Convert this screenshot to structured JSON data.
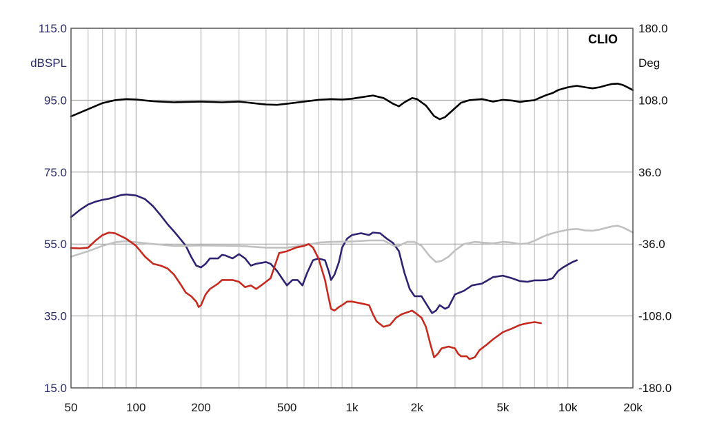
{
  "chart_data": {
    "type": "line",
    "brand": "CLIO",
    "ylabel_left": "dBSPL",
    "ylabel_right": "Deg",
    "xscale": "log",
    "xlim": [
      50,
      20000
    ],
    "ylim_left": [
      15,
      115
    ],
    "ylim_right": [
      -180,
      180
    ],
    "grid": true,
    "y_ticks_left": [
      "115.0",
      "95.0",
      "75.0",
      "55.0",
      "35.0",
      "15.0"
    ],
    "y_ticks_right": [
      "180.0",
      "108.0",
      "36.0",
      "-36.0",
      "-108.0",
      "-180.0"
    ],
    "x_ticks": [
      {
        "value": 50,
        "label": "50"
      },
      {
        "value": 100,
        "label": "100"
      },
      {
        "value": 200,
        "label": "200"
      },
      {
        "value": 500,
        "label": "500"
      },
      {
        "value": 1000,
        "label": "1k"
      },
      {
        "value": 2000,
        "label": "2k"
      },
      {
        "value": 5000,
        "label": "5k"
      },
      {
        "value": 10000,
        "label": "10k"
      },
      {
        "value": 20000,
        "label": "20k"
      }
    ],
    "series": [
      {
        "color": "#000000",
        "points": [
          [
            50,
            90.5
          ],
          [
            60,
            92.5
          ],
          [
            70,
            94.2
          ],
          [
            80,
            95.0
          ],
          [
            90,
            95.3
          ],
          [
            100,
            95.2
          ],
          [
            120,
            94.7
          ],
          [
            150,
            94.4
          ],
          [
            200,
            94.6
          ],
          [
            250,
            94.4
          ],
          [
            300,
            94.6
          ],
          [
            400,
            93.8
          ],
          [
            450,
            93.7
          ],
          [
            500,
            94.0
          ],
          [
            600,
            94.6
          ],
          [
            700,
            95.1
          ],
          [
            800,
            95.3
          ],
          [
            900,
            95.2
          ],
          [
            1000,
            95.4
          ],
          [
            1100,
            95.8
          ],
          [
            1250,
            96.3
          ],
          [
            1400,
            95.6
          ],
          [
            1550,
            94.0
          ],
          [
            1650,
            93.3
          ],
          [
            1750,
            94.4
          ],
          [
            1900,
            95.6
          ],
          [
            2000,
            95.3
          ],
          [
            2200,
            93.5
          ],
          [
            2400,
            90.6
          ],
          [
            2550,
            89.7
          ],
          [
            2700,
            90.3
          ],
          [
            2900,
            92.0
          ],
          [
            3200,
            94.3
          ],
          [
            3500,
            95.0
          ],
          [
            4000,
            95.3
          ],
          [
            4500,
            94.6
          ],
          [
            5000,
            95.1
          ],
          [
            5500,
            94.9
          ],
          [
            6000,
            94.5
          ],
          [
            6500,
            94.8
          ],
          [
            7000,
            95.0
          ],
          [
            7500,
            95.8
          ],
          [
            8000,
            96.5
          ],
          [
            8500,
            97.0
          ],
          [
            9000,
            97.8
          ],
          [
            10000,
            98.6
          ],
          [
            11000,
            99.0
          ],
          [
            12000,
            98.6
          ],
          [
            13000,
            98.3
          ],
          [
            14000,
            98.6
          ],
          [
            15000,
            99.1
          ],
          [
            16000,
            99.5
          ],
          [
            17000,
            99.6
          ],
          [
            18000,
            99.2
          ],
          [
            19000,
            98.5
          ],
          [
            20000,
            97.8
          ]
        ]
      },
      {
        "color": "#2e2272",
        "points": [
          [
            50,
            62.5
          ],
          [
            55,
            64.5
          ],
          [
            60,
            66.0
          ],
          [
            65,
            66.8
          ],
          [
            70,
            67.3
          ],
          [
            75,
            67.6
          ],
          [
            80,
            68.1
          ],
          [
            85,
            68.6
          ],
          [
            90,
            68.8
          ],
          [
            100,
            68.5
          ],
          [
            110,
            67.5
          ],
          [
            120,
            65.5
          ],
          [
            130,
            63.0
          ],
          [
            140,
            60.5
          ],
          [
            150,
            58.5
          ],
          [
            160,
            56.5
          ],
          [
            170,
            54.5
          ],
          [
            180,
            51.5
          ],
          [
            190,
            49.0
          ],
          [
            200,
            48.5
          ],
          [
            210,
            49.5
          ],
          [
            220,
            51.0
          ],
          [
            240,
            51.0
          ],
          [
            250,
            52.0
          ],
          [
            260,
            51.8
          ],
          [
            280,
            51.0
          ],
          [
            300,
            52.2
          ],
          [
            320,
            51.0
          ],
          [
            340,
            49.0
          ],
          [
            360,
            49.5
          ],
          [
            400,
            50.0
          ],
          [
            420,
            49.5
          ],
          [
            450,
            47.5
          ],
          [
            480,
            45.0
          ],
          [
            500,
            43.5
          ],
          [
            530,
            45.0
          ],
          [
            560,
            45.0
          ],
          [
            590,
            43.5
          ],
          [
            620,
            47.0
          ],
          [
            660,
            50.5
          ],
          [
            700,
            51.0
          ],
          [
            750,
            50.5
          ],
          [
            780,
            47.5
          ],
          [
            800,
            45.0
          ],
          [
            830,
            46.5
          ],
          [
            870,
            50.0
          ],
          [
            900,
            54.0
          ],
          [
            950,
            56.5
          ],
          [
            1000,
            57.5
          ],
          [
            1100,
            58.0
          ],
          [
            1200,
            57.5
          ],
          [
            1250,
            58.2
          ],
          [
            1350,
            58.0
          ],
          [
            1450,
            56.5
          ],
          [
            1550,
            55.3
          ],
          [
            1650,
            53.0
          ],
          [
            1750,
            47.0
          ],
          [
            1850,
            42.5
          ],
          [
            1950,
            40.5
          ],
          [
            2100,
            40.5
          ],
          [
            2200,
            38.5
          ],
          [
            2350,
            35.8
          ],
          [
            2450,
            36.5
          ],
          [
            2550,
            38.0
          ],
          [
            2700,
            37.0
          ],
          [
            2800,
            37.5
          ],
          [
            3000,
            41.0
          ],
          [
            3300,
            42.0
          ],
          [
            3600,
            43.5
          ],
          [
            4000,
            44.0
          ],
          [
            4500,
            45.8
          ],
          [
            5000,
            46.2
          ],
          [
            5500,
            45.5
          ],
          [
            6000,
            44.7
          ],
          [
            6500,
            44.5
          ],
          [
            7000,
            44.9
          ],
          [
            7500,
            44.9
          ],
          [
            8000,
            45.0
          ],
          [
            8500,
            45.5
          ],
          [
            9000,
            47.5
          ],
          [
            9500,
            48.5
          ],
          [
            10000,
            49.3
          ],
          [
            10500,
            50.0
          ],
          [
            11000,
            50.5
          ]
        ]
      },
      {
        "color": "#c0c0c0",
        "points": [
          [
            50,
            51.5
          ],
          [
            60,
            53.0
          ],
          [
            70,
            54.5
          ],
          [
            80,
            55.5
          ],
          [
            90,
            55.8
          ],
          [
            100,
            55.5
          ],
          [
            120,
            55.0
          ],
          [
            150,
            54.5
          ],
          [
            200,
            54.6
          ],
          [
            300,
            54.5
          ],
          [
            400,
            54.0
          ],
          [
            500,
            54.0
          ],
          [
            600,
            54.6
          ],
          [
            700,
            55.4
          ],
          [
            800,
            55.6
          ],
          [
            1000,
            55.7
          ],
          [
            1200,
            56.0
          ],
          [
            1400,
            56.0
          ],
          [
            1550,
            54.6
          ],
          [
            1650,
            54.5
          ],
          [
            1800,
            55.6
          ],
          [
            1950,
            55.6
          ],
          [
            2100,
            54.5
          ],
          [
            2300,
            51.5
          ],
          [
            2450,
            50.0
          ],
          [
            2600,
            50.3
          ],
          [
            2800,
            51.5
          ],
          [
            3000,
            53.2
          ],
          [
            3300,
            55.0
          ],
          [
            3700,
            55.6
          ],
          [
            4000,
            55.4
          ],
          [
            4500,
            55.2
          ],
          [
            5000,
            55.6
          ],
          [
            5500,
            55.4
          ],
          [
            6000,
            55.0
          ],
          [
            6500,
            55.2
          ],
          [
            7000,
            55.9
          ],
          [
            7500,
            56.8
          ],
          [
            8000,
            57.5
          ],
          [
            8500,
            58.0
          ],
          [
            9000,
            58.4
          ],
          [
            10000,
            59.0
          ],
          [
            11000,
            59.2
          ],
          [
            12000,
            58.8
          ],
          [
            13000,
            58.7
          ],
          [
            14000,
            59.0
          ],
          [
            15000,
            59.5
          ],
          [
            16000,
            59.9
          ],
          [
            17000,
            60.1
          ],
          [
            18000,
            59.6
          ],
          [
            19000,
            58.9
          ],
          [
            20000,
            58.2
          ]
        ]
      },
      {
        "color": "#c62a1e",
        "points": [
          [
            50,
            53.9
          ],
          [
            55,
            53.8
          ],
          [
            60,
            54.0
          ],
          [
            65,
            56.0
          ],
          [
            70,
            57.5
          ],
          [
            75,
            58.2
          ],
          [
            80,
            58.0
          ],
          [
            90,
            56.5
          ],
          [
            100,
            54.5
          ],
          [
            110,
            51.5
          ],
          [
            120,
            49.5
          ],
          [
            130,
            49.0
          ],
          [
            140,
            48.2
          ],
          [
            150,
            46.5
          ],
          [
            160,
            44.0
          ],
          [
            170,
            41.5
          ],
          [
            180,
            40.5
          ],
          [
            190,
            39.0
          ],
          [
            195,
            37.5
          ],
          [
            200,
            38.0
          ],
          [
            210,
            41.0
          ],
          [
            220,
            42.5
          ],
          [
            240,
            44.0
          ],
          [
            250,
            45.0
          ],
          [
            280,
            45.0
          ],
          [
            300,
            44.5
          ],
          [
            320,
            43.0
          ],
          [
            340,
            43.5
          ],
          [
            360,
            42.5
          ],
          [
            380,
            43.5
          ],
          [
            420,
            45.5
          ],
          [
            460,
            52.5
          ],
          [
            500,
            53.0
          ],
          [
            550,
            54.0
          ],
          [
            600,
            54.5
          ],
          [
            630,
            55.0
          ],
          [
            660,
            54.0
          ],
          [
            700,
            51.0
          ],
          [
            750,
            45.0
          ],
          [
            780,
            40.0
          ],
          [
            800,
            37.0
          ],
          [
            830,
            36.5
          ],
          [
            870,
            37.5
          ],
          [
            900,
            38.0
          ],
          [
            950,
            39.0
          ],
          [
            1000,
            39.0
          ],
          [
            1100,
            38.5
          ],
          [
            1200,
            38.0
          ],
          [
            1250,
            35.5
          ],
          [
            1300,
            33.5
          ],
          [
            1400,
            32.0
          ],
          [
            1500,
            32.5
          ],
          [
            1600,
            34.5
          ],
          [
            1700,
            35.5
          ],
          [
            1800,
            36.0
          ],
          [
            1900,
            36.5
          ],
          [
            2000,
            35.5
          ],
          [
            2100,
            34.5
          ],
          [
            2200,
            32.0
          ],
          [
            2300,
            27.5
          ],
          [
            2400,
            23.5
          ],
          [
            2500,
            24.5
          ],
          [
            2600,
            26.0
          ],
          [
            2800,
            26.5
          ],
          [
            3000,
            26.0
          ],
          [
            3100,
            24.5
          ],
          [
            3200,
            23.8
          ],
          [
            3400,
            23.8
          ],
          [
            3500,
            23.0
          ],
          [
            3700,
            23.5
          ],
          [
            3900,
            25.5
          ],
          [
            4200,
            27.0
          ],
          [
            4500,
            28.5
          ],
          [
            5000,
            30.5
          ],
          [
            5500,
            31.5
          ],
          [
            6000,
            32.5
          ],
          [
            6500,
            33.0
          ],
          [
            7000,
            33.3
          ],
          [
            7500,
            33.0
          ]
        ]
      }
    ]
  }
}
